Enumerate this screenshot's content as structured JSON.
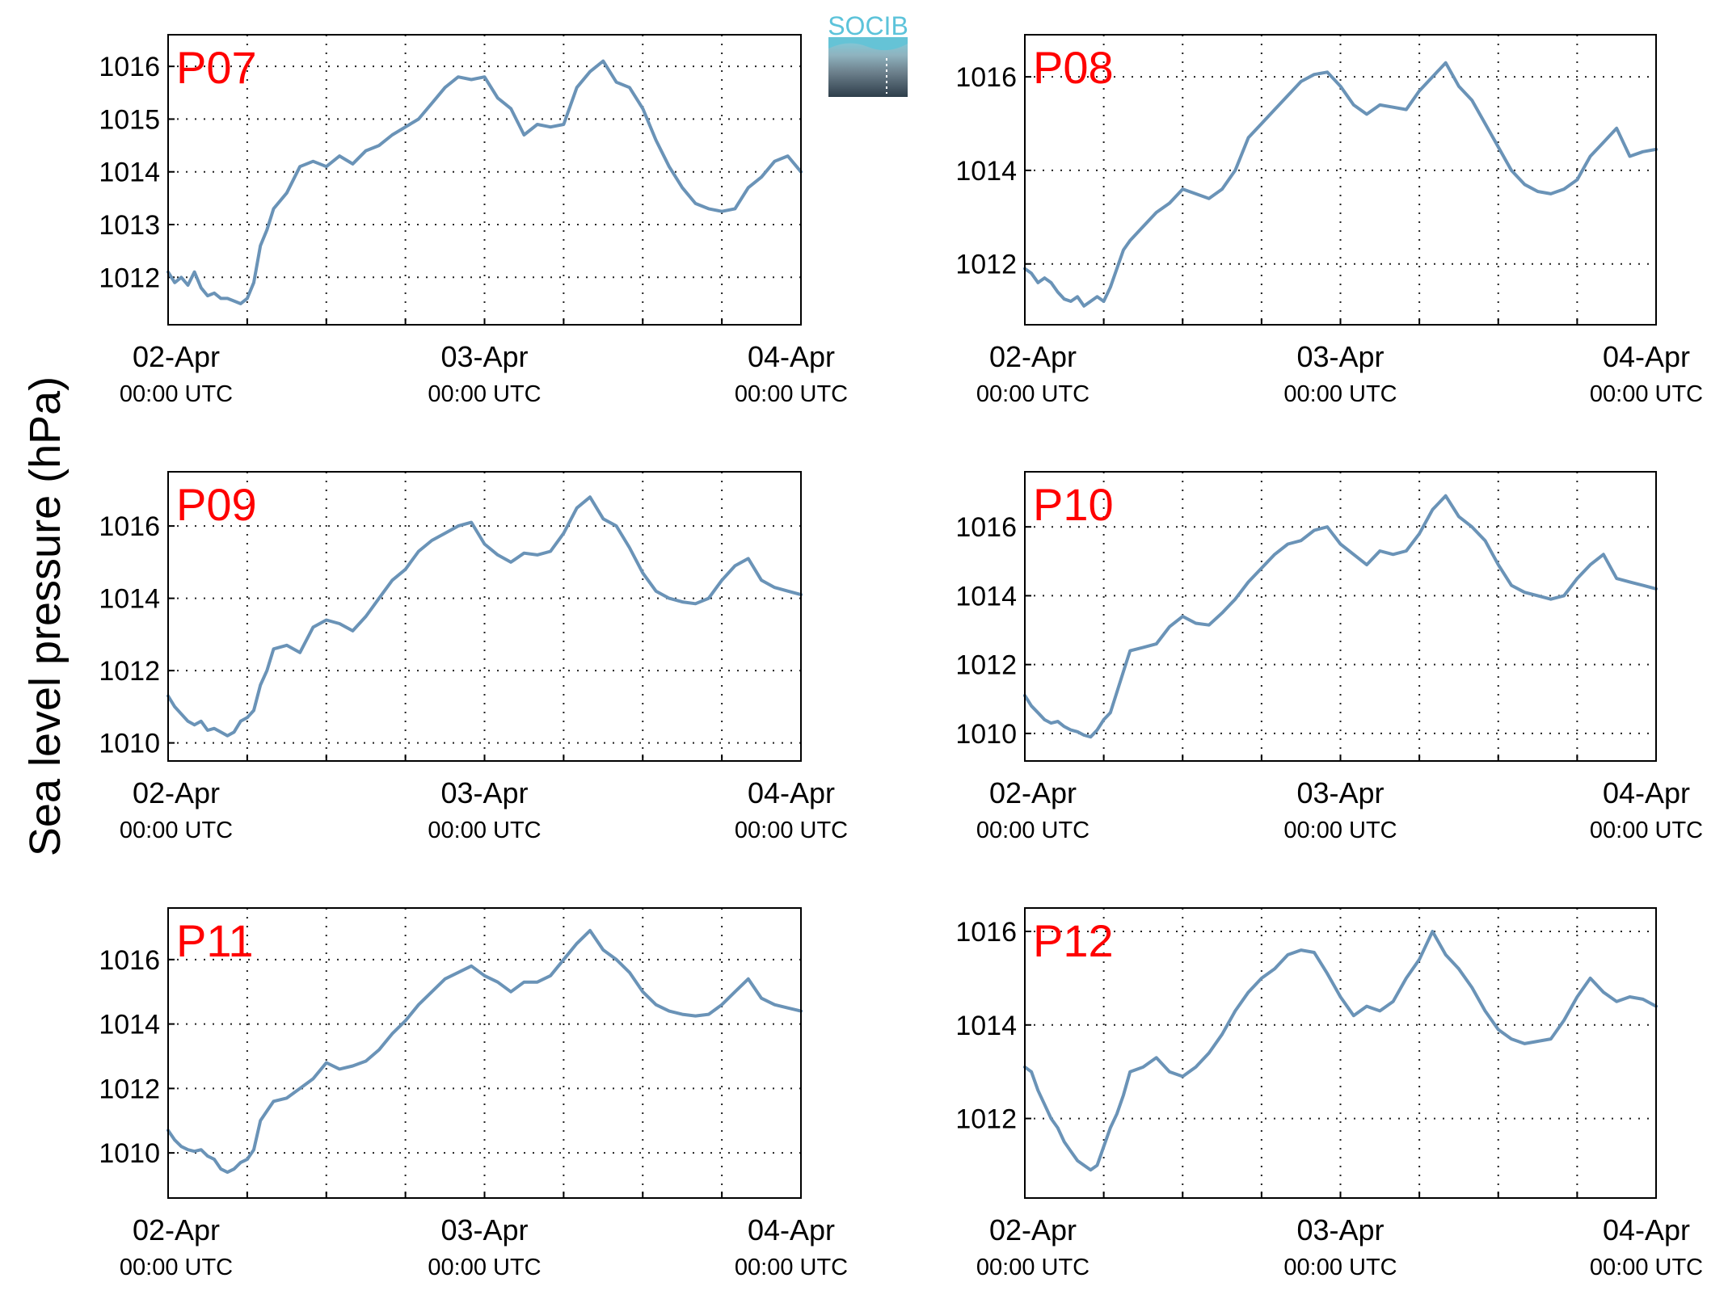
{
  "figure": {
    "ylabel": "Sea level pressure (hPa)",
    "logo_text": "SOCIB",
    "series_color": "#6a93b7",
    "title_color": "#ff0000"
  },
  "chart_data": [
    {
      "type": "line",
      "title": "P07",
      "x_ticks": [
        {
          "date": "02-Apr",
          "time": "00:00 UTC"
        },
        {
          "date": "03-Apr",
          "time": "00:00 UTC"
        },
        {
          "date": "04-Apr",
          "time": "00:00 UTC"
        }
      ],
      "xlim_hours": [
        0,
        48
      ],
      "ylim": [
        1011.1,
        1016.6
      ],
      "yticks": [
        1012,
        1013,
        1014,
        1015,
        1016
      ],
      "grid": true,
      "series": [
        {
          "x_hours": [
            0,
            0.5,
            1,
            1.5,
            2,
            2.5,
            3,
            3.5,
            4,
            4.5,
            5,
            5.5,
            6,
            6.5,
            7,
            7.5,
            8,
            9,
            10,
            11,
            12,
            13,
            14,
            15,
            16,
            17,
            18,
            19,
            20,
            21,
            22,
            23,
            24,
            25,
            26,
            27,
            28,
            29,
            30,
            31,
            32,
            33,
            34,
            35,
            36,
            37,
            38,
            39,
            40,
            41,
            42,
            43,
            44,
            45,
            46,
            47,
            48
          ],
          "values": [
            1012.1,
            1011.9,
            1012.0,
            1011.85,
            1012.1,
            1011.8,
            1011.65,
            1011.7,
            1011.6,
            1011.6,
            1011.55,
            1011.5,
            1011.6,
            1011.9,
            1012.6,
            1012.9,
            1013.3,
            1013.6,
            1014.1,
            1014.2,
            1014.1,
            1014.3,
            1014.15,
            1014.4,
            1014.5,
            1014.7,
            1014.85,
            1015.0,
            1015.3,
            1015.6,
            1015.8,
            1015.75,
            1015.8,
            1015.4,
            1015.2,
            1014.7,
            1014.9,
            1014.85,
            1014.9,
            1015.6,
            1015.9,
            1016.1,
            1015.7,
            1015.6,
            1015.2,
            1014.6,
            1014.1,
            1013.7,
            1013.4,
            1013.3,
            1013.25,
            1013.3,
            1013.7,
            1013.9,
            1014.2,
            1014.3,
            1014.0
          ]
        }
      ]
    },
    {
      "type": "line",
      "title": "P08",
      "x_ticks": [
        {
          "date": "02-Apr",
          "time": "00:00 UTC"
        },
        {
          "date": "03-Apr",
          "time": "00:00 UTC"
        },
        {
          "date": "04-Apr",
          "time": "00:00 UTC"
        }
      ],
      "xlim_hours": [
        0,
        48
      ],
      "ylim": [
        1010.7,
        1016.9
      ],
      "yticks": [
        1012,
        1014,
        1016
      ],
      "grid": true,
      "series": [
        {
          "x_hours": [
            0,
            0.5,
            1,
            1.5,
            2,
            2.5,
            3,
            3.5,
            4,
            4.5,
            5,
            5.5,
            6,
            6.5,
            7,
            7.5,
            8,
            9,
            10,
            11,
            12,
            13,
            14,
            15,
            16,
            17,
            18,
            19,
            20,
            21,
            22,
            23,
            24,
            25,
            26,
            27,
            28,
            29,
            30,
            31,
            32,
            33,
            34,
            35,
            36,
            37,
            38,
            39,
            40,
            41,
            42,
            43,
            44,
            45,
            46,
            47,
            48
          ],
          "values": [
            1011.9,
            1011.8,
            1011.6,
            1011.7,
            1011.6,
            1011.4,
            1011.25,
            1011.2,
            1011.3,
            1011.1,
            1011.2,
            1011.3,
            1011.2,
            1011.5,
            1011.9,
            1012.3,
            1012.5,
            1012.8,
            1013.1,
            1013.3,
            1013.6,
            1013.5,
            1013.4,
            1013.6,
            1014.0,
            1014.7,
            1015.0,
            1015.3,
            1015.6,
            1015.9,
            1016.05,
            1016.1,
            1015.8,
            1015.4,
            1015.2,
            1015.4,
            1015.35,
            1015.3,
            1015.7,
            1016.0,
            1016.3,
            1015.8,
            1015.5,
            1015.0,
            1014.5,
            1014.0,
            1013.7,
            1013.55,
            1013.5,
            1013.6,
            1013.8,
            1014.3,
            1014.6,
            1014.9,
            1014.3,
            1014.4,
            1014.45
          ]
        }
      ]
    },
    {
      "type": "line",
      "title": "P09",
      "x_ticks": [
        {
          "date": "02-Apr",
          "time": "00:00 UTC"
        },
        {
          "date": "03-Apr",
          "time": "00:00 UTC"
        },
        {
          "date": "04-Apr",
          "time": "00:00 UTC"
        }
      ],
      "xlim_hours": [
        0,
        48
      ],
      "ylim": [
        1009.5,
        1017.5
      ],
      "yticks": [
        1010,
        1012,
        1014,
        1016
      ],
      "grid": true,
      "series": [
        {
          "x_hours": [
            0,
            0.5,
            1,
            1.5,
            2,
            2.5,
            3,
            3.5,
            4,
            4.5,
            5,
            5.5,
            6,
            6.5,
            7,
            7.5,
            8,
            9,
            10,
            11,
            12,
            13,
            14,
            15,
            16,
            17,
            18,
            19,
            20,
            21,
            22,
            23,
            24,
            25,
            26,
            27,
            28,
            29,
            30,
            31,
            32,
            33,
            34,
            35,
            36,
            37,
            38,
            39,
            40,
            41,
            42,
            43,
            44,
            45,
            46,
            47,
            48
          ],
          "values": [
            1011.3,
            1011.0,
            1010.8,
            1010.6,
            1010.5,
            1010.6,
            1010.35,
            1010.4,
            1010.3,
            1010.2,
            1010.3,
            1010.6,
            1010.7,
            1010.9,
            1011.6,
            1012.0,
            1012.6,
            1012.7,
            1012.5,
            1013.2,
            1013.4,
            1013.3,
            1013.1,
            1013.5,
            1014.0,
            1014.5,
            1014.8,
            1015.3,
            1015.6,
            1015.8,
            1016.0,
            1016.1,
            1015.5,
            1015.2,
            1015.0,
            1015.25,
            1015.2,
            1015.3,
            1015.8,
            1016.5,
            1016.8,
            1016.2,
            1016.0,
            1015.4,
            1014.7,
            1014.2,
            1014.0,
            1013.9,
            1013.85,
            1014.0,
            1014.5,
            1014.9,
            1015.1,
            1014.5,
            1014.3,
            1014.2,
            1014.1
          ]
        }
      ]
    },
    {
      "type": "line",
      "title": "P10",
      "x_ticks": [
        {
          "date": "02-Apr",
          "time": "00:00 UTC"
        },
        {
          "date": "03-Apr",
          "time": "00:00 UTC"
        },
        {
          "date": "04-Apr",
          "time": "00:00 UTC"
        }
      ],
      "xlim_hours": [
        0,
        48
      ],
      "ylim": [
        1009.2,
        1017.6
      ],
      "yticks": [
        1010,
        1012,
        1014,
        1016
      ],
      "grid": true,
      "series": [
        {
          "x_hours": [
            0,
            0.5,
            1,
            1.5,
            2,
            2.5,
            3,
            3.5,
            4,
            4.5,
            5,
            5.5,
            6,
            6.5,
            7,
            7.5,
            8,
            9,
            10,
            11,
            12,
            13,
            14,
            15,
            16,
            17,
            18,
            19,
            20,
            21,
            22,
            23,
            24,
            25,
            26,
            27,
            28,
            29,
            30,
            31,
            32,
            33,
            34,
            35,
            36,
            37,
            38,
            39,
            40,
            41,
            42,
            43,
            44,
            45,
            46,
            47,
            48
          ],
          "values": [
            1011.1,
            1010.8,
            1010.6,
            1010.4,
            1010.3,
            1010.35,
            1010.2,
            1010.1,
            1010.05,
            1009.95,
            1009.9,
            1010.1,
            1010.4,
            1010.6,
            1011.2,
            1011.8,
            1012.4,
            1012.5,
            1012.6,
            1013.1,
            1013.4,
            1013.2,
            1013.15,
            1013.5,
            1013.9,
            1014.4,
            1014.8,
            1015.2,
            1015.5,
            1015.6,
            1015.9,
            1016.0,
            1015.5,
            1015.2,
            1014.9,
            1015.3,
            1015.2,
            1015.3,
            1015.8,
            1016.5,
            1016.9,
            1016.3,
            1016.0,
            1015.6,
            1014.9,
            1014.3,
            1014.1,
            1014.0,
            1013.9,
            1014.0,
            1014.5,
            1014.9,
            1015.2,
            1014.5,
            1014.4,
            1014.3,
            1014.2
          ]
        }
      ]
    },
    {
      "type": "line",
      "title": "P11",
      "x_ticks": [
        {
          "date": "02-Apr",
          "time": "00:00 UTC"
        },
        {
          "date": "03-Apr",
          "time": "00:00 UTC"
        },
        {
          "date": "04-Apr",
          "time": "00:00 UTC"
        }
      ],
      "xlim_hours": [
        0,
        48
      ],
      "ylim": [
        1008.6,
        1017.6
      ],
      "yticks": [
        1010,
        1012,
        1014,
        1016
      ],
      "grid": true,
      "series": [
        {
          "x_hours": [
            0,
            0.5,
            1,
            1.5,
            2,
            2.5,
            3,
            3.5,
            4,
            4.5,
            5,
            5.5,
            6,
            6.5,
            7,
            7.5,
            8,
            9,
            10,
            11,
            12,
            13,
            14,
            15,
            16,
            17,
            18,
            19,
            20,
            21,
            22,
            23,
            24,
            25,
            26,
            27,
            28,
            29,
            30,
            31,
            32,
            33,
            34,
            35,
            36,
            37,
            38,
            39,
            40,
            41,
            42,
            43,
            44,
            45,
            46,
            47,
            48
          ],
          "values": [
            1010.7,
            1010.4,
            1010.2,
            1010.1,
            1010.05,
            1010.1,
            1009.9,
            1009.8,
            1009.5,
            1009.4,
            1009.5,
            1009.7,
            1009.8,
            1010.1,
            1011.0,
            1011.3,
            1011.6,
            1011.7,
            1012.0,
            1012.3,
            1012.8,
            1012.6,
            1012.7,
            1012.85,
            1013.2,
            1013.7,
            1014.1,
            1014.6,
            1015.0,
            1015.4,
            1015.6,
            1015.8,
            1015.5,
            1015.3,
            1015.0,
            1015.3,
            1015.3,
            1015.5,
            1016.0,
            1016.5,
            1016.9,
            1016.3,
            1016.0,
            1015.6,
            1015.0,
            1014.6,
            1014.4,
            1014.3,
            1014.25,
            1014.3,
            1014.6,
            1015.0,
            1015.4,
            1014.8,
            1014.6,
            1014.5,
            1014.4
          ]
        }
      ]
    },
    {
      "type": "line",
      "title": "P12",
      "x_ticks": [
        {
          "date": "02-Apr",
          "time": "00:00 UTC"
        },
        {
          "date": "03-Apr",
          "time": "00:00 UTC"
        },
        {
          "date": "04-Apr",
          "time": "00:00 UTC"
        }
      ],
      "xlim_hours": [
        0,
        48
      ],
      "ylim": [
        1010.3,
        1016.5
      ],
      "yticks": [
        1012,
        1014,
        1016
      ],
      "grid": true,
      "series": [
        {
          "x_hours": [
            0,
            0.5,
            1,
            1.5,
            2,
            2.5,
            3,
            3.5,
            4,
            4.5,
            5,
            5.5,
            6,
            6.5,
            7,
            7.5,
            8,
            9,
            10,
            11,
            12,
            13,
            14,
            15,
            16,
            17,
            18,
            19,
            20,
            21,
            22,
            23,
            24,
            25,
            26,
            27,
            28,
            29,
            30,
            31,
            32,
            33,
            34,
            35,
            36,
            37,
            38,
            39,
            40,
            41,
            42,
            43,
            44,
            45,
            46,
            47,
            48
          ],
          "values": [
            1013.1,
            1013.0,
            1012.6,
            1012.3,
            1012.0,
            1011.8,
            1011.5,
            1011.3,
            1011.1,
            1011.0,
            1010.9,
            1011.0,
            1011.4,
            1011.8,
            1012.1,
            1012.5,
            1013.0,
            1013.1,
            1013.3,
            1013.0,
            1012.9,
            1013.1,
            1013.4,
            1013.8,
            1014.3,
            1014.7,
            1015.0,
            1015.2,
            1015.5,
            1015.6,
            1015.55,
            1015.1,
            1014.6,
            1014.2,
            1014.4,
            1014.3,
            1014.5,
            1015.0,
            1015.4,
            1016.0,
            1015.5,
            1015.2,
            1014.8,
            1014.3,
            1013.9,
            1013.7,
            1013.6,
            1013.65,
            1013.7,
            1014.1,
            1014.6,
            1015.0,
            1014.7,
            1014.5,
            1014.6,
            1014.55,
            1014.4
          ]
        }
      ]
    }
  ]
}
